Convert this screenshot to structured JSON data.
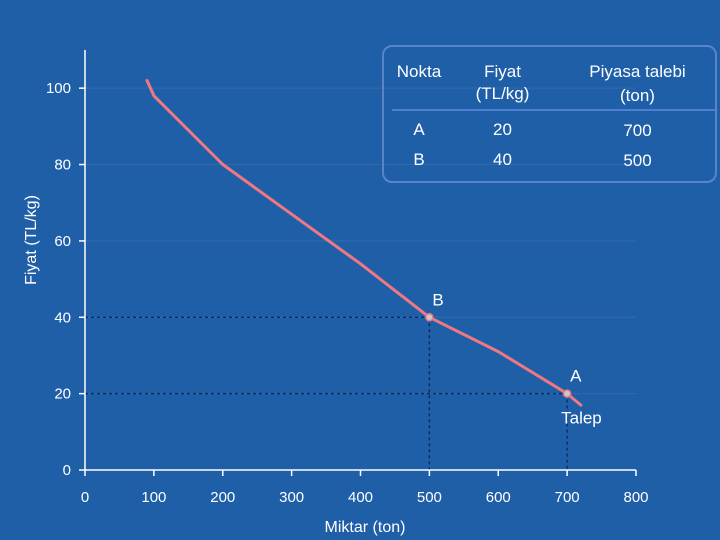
{
  "chart_data": {
    "type": "line",
    "xlabel": "Miktar (ton)",
    "ylabel": "Fiyat (TL/kg)",
    "xlim": [
      0,
      800
    ],
    "ylim": [
      0,
      110
    ],
    "x_ticks": [
      0,
      100,
      200,
      300,
      400,
      500,
      600,
      700,
      800
    ],
    "y_ticks": [
      0,
      20,
      40,
      60,
      80,
      100
    ],
    "series": [
      {
        "name": "Talep",
        "x": [
          90,
          100,
          200,
          300,
          400,
          500,
          600,
          700,
          720
        ],
        "y": [
          102,
          98,
          80,
          67,
          54,
          40,
          31,
          20,
          17
        ]
      }
    ],
    "points": [
      {
        "label": "A",
        "x": 700,
        "y": 20
      },
      {
        "label": "B",
        "x": 500,
        "y": 40
      }
    ],
    "curve_label": "Talep",
    "colors": {
      "background": "#1f5fa8",
      "curve": "#f07882",
      "axis": "#ffffff",
      "guides": "#0d2a5c",
      "grid": "#ffffff"
    }
  },
  "table": {
    "headers": [
      {
        "line1": "Nokta",
        "line2": ""
      },
      {
        "line1": "Fiyat",
        "line2": "(TL/kg)"
      },
      {
        "line1": "Piyasa talebi",
        "line2": "(ton)"
      }
    ],
    "rows": [
      {
        "nokta": "A",
        "fiyat": "20",
        "talep": "700"
      },
      {
        "nokta": "B",
        "fiyat": "40",
        "talep": "500"
      }
    ]
  }
}
